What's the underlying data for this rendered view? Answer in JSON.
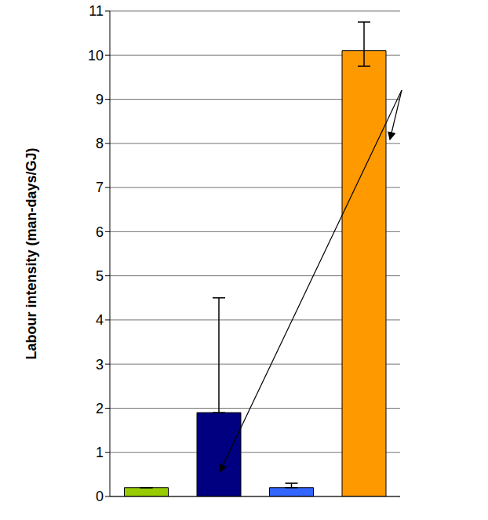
{
  "chart_data": {
    "type": "bar",
    "y_label": "Labour intensity (man-days/GJ)",
    "categories": [
      null,
      null,
      null,
      null
    ],
    "values": [
      0.2,
      1.9,
      0.2,
      10.1
    ],
    "errors": [
      [
        0,
        0
      ],
      [
        0,
        2.6
      ],
      [
        0,
        0.1
      ],
      [
        0.35,
        0.65
      ]
    ],
    "colors": [
      "#99cc00",
      "#000080",
      "#3366ff",
      "#ff9900"
    ],
    "ylim": [
      0,
      11
    ],
    "yticks": [
      0,
      1,
      2,
      3,
      4,
      5,
      6,
      7,
      8,
      9,
      10,
      11
    ],
    "grid": true,
    "tick_labels": "y"
  }
}
